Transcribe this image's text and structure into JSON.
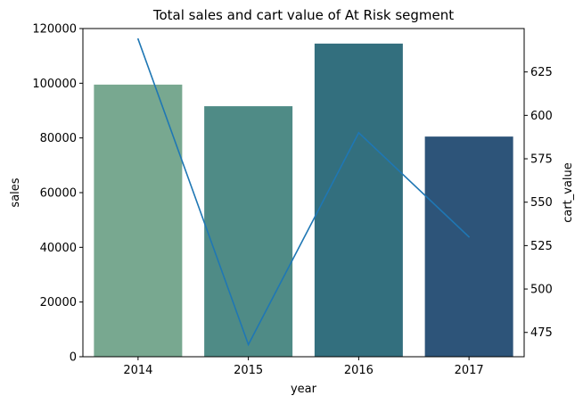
{
  "chart_data": {
    "type": "bar",
    "title": "Total sales and cart value of At Risk segment",
    "xlabel": "year",
    "ylabel": "sales",
    "y2label": "cart_value",
    "categories": [
      "2014",
      "2015",
      "2016",
      "2017"
    ],
    "series": [
      {
        "type": "bar",
        "axis": "left",
        "values": [
          99500,
          91600,
          114500,
          80500
        ],
        "colors": [
          "#78a890",
          "#4f8b86",
          "#336f7e",
          "#2d5479"
        ]
      },
      {
        "type": "line",
        "axis": "right",
        "values": [
          644,
          468,
          590,
          530
        ],
        "color": "#1f77b4"
      }
    ],
    "ylim": [
      0,
      120000
    ],
    "y2lim": [
      461,
      650
    ],
    "yticks": [
      0,
      20000,
      40000,
      60000,
      80000,
      100000,
      120000
    ],
    "y2ticks": [
      475,
      500,
      525,
      550,
      575,
      600,
      625
    ],
    "grid": false,
    "legend": "none"
  }
}
